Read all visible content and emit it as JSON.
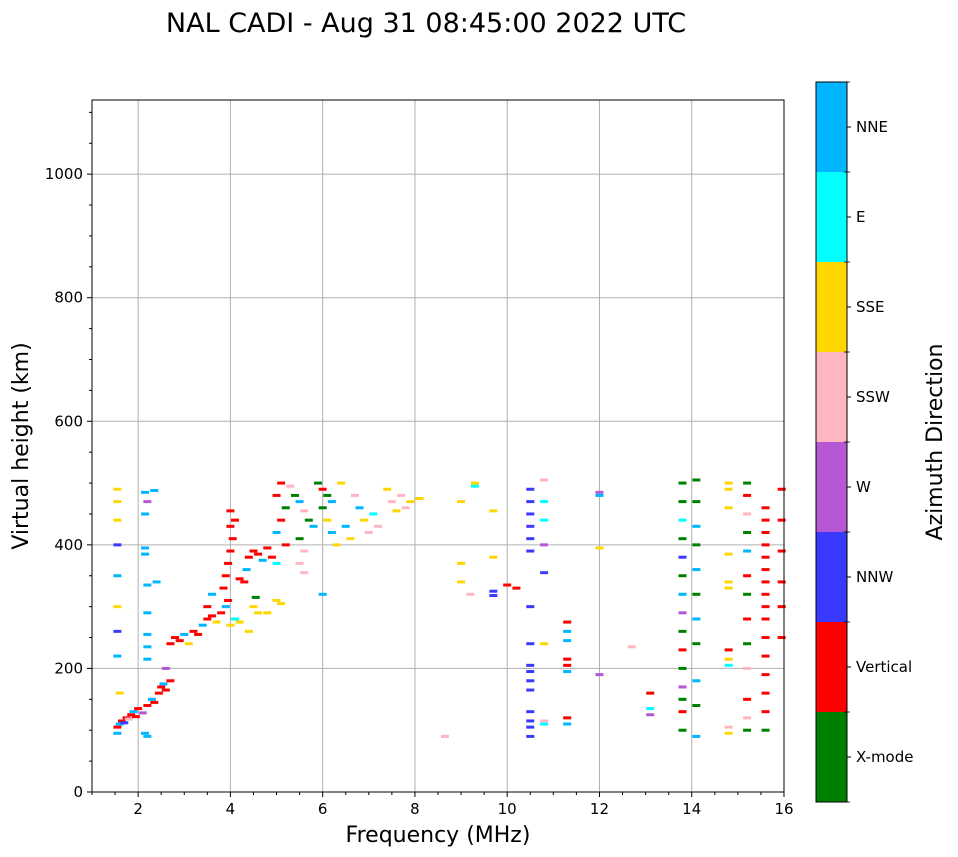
{
  "chart_data": {
    "type": "scatter",
    "title": "NAL CADI - Aug 31 08:45:00 2022 UTC",
    "xlabel": "Frequency (MHz)",
    "ylabel": "Virtual height (km)",
    "xlim": [
      1,
      16
    ],
    "ylim": [
      0,
      1120
    ],
    "x_ticks": [
      2,
      4,
      6,
      8,
      10,
      12,
      14,
      16
    ],
    "y_ticks": [
      0,
      200,
      400,
      600,
      800,
      1000
    ],
    "grid": true,
    "colorbar": {
      "title": "Azimuth Direction",
      "categories": [
        {
          "label": "X-mode",
          "color": "#008000"
        },
        {
          "label": "Vertical",
          "color": "#ff0000"
        },
        {
          "label": "NNW",
          "color": "#3a3aff"
        },
        {
          "label": "W",
          "color": "#b657d6"
        },
        {
          "label": "SSW",
          "color": "#ffb6c1"
        },
        {
          "label": "SSE",
          "color": "#ffd700"
        },
        {
          "label": "E",
          "color": "#00ffff"
        },
        {
          "label": "NNE",
          "color": "#00b7ff"
        }
      ]
    },
    "points": [
      [
        1.55,
        105,
        "Vertical"
      ],
      [
        1.6,
        110,
        "NNE"
      ],
      [
        1.65,
        115,
        "Vertical"
      ],
      [
        1.7,
        112,
        "NNW"
      ],
      [
        1.75,
        120,
        "Vertical"
      ],
      [
        1.8,
        118,
        "SSW"
      ],
      [
        1.85,
        125,
        "Vertical"
      ],
      [
        1.9,
        130,
        "NNE"
      ],
      [
        1.95,
        122,
        "Vertical"
      ],
      [
        2.0,
        135,
        "Vertical"
      ],
      [
        2.1,
        128,
        "W"
      ],
      [
        2.2,
        140,
        "Vertical"
      ],
      [
        2.3,
        150,
        "NNE"
      ],
      [
        2.35,
        145,
        "Vertical"
      ],
      [
        2.45,
        160,
        "Vertical"
      ],
      [
        2.5,
        170,
        "Vertical"
      ],
      [
        2.55,
        175,
        "NNE"
      ],
      [
        2.6,
        165,
        "Vertical"
      ],
      [
        2.7,
        180,
        "Vertical"
      ],
      [
        2.6,
        200,
        "W"
      ],
      [
        1.55,
        490,
        "SSE"
      ],
      [
        1.55,
        470,
        "SSE"
      ],
      [
        1.55,
        440,
        "SSE"
      ],
      [
        1.55,
        400,
        "NNW"
      ],
      [
        1.55,
        350,
        "NNE"
      ],
      [
        1.55,
        300,
        "SSE"
      ],
      [
        1.55,
        260,
        "NNW"
      ],
      [
        1.55,
        220,
        "NNE"
      ],
      [
        1.6,
        160,
        "SSE"
      ],
      [
        1.55,
        95,
        "NNE"
      ],
      [
        2.15,
        485,
        "NNE"
      ],
      [
        2.2,
        470,
        "W"
      ],
      [
        2.15,
        450,
        "NNE"
      ],
      [
        2.15,
        395,
        "NNE"
      ],
      [
        2.15,
        385,
        "NNE"
      ],
      [
        2.2,
        335,
        "NNE"
      ],
      [
        2.2,
        290,
        "NNE"
      ],
      [
        2.2,
        255,
        "NNE"
      ],
      [
        2.2,
        235,
        "NNE"
      ],
      [
        2.2,
        215,
        "NNE"
      ],
      [
        2.35,
        488,
        "NNE"
      ],
      [
        2.4,
        340,
        "NNE"
      ],
      [
        2.15,
        95,
        "NNE"
      ],
      [
        2.2,
        90,
        "NNE"
      ],
      [
        2.7,
        240,
        "Vertical"
      ],
      [
        2.8,
        250,
        "Vertical"
      ],
      [
        2.9,
        245,
        "Vertical"
      ],
      [
        3.0,
        255,
        "NNE"
      ],
      [
        3.1,
        240,
        "SSE"
      ],
      [
        3.2,
        260,
        "Vertical"
      ],
      [
        3.3,
        255,
        "Vertical"
      ],
      [
        3.4,
        270,
        "NNE"
      ],
      [
        3.5,
        280,
        "Vertical"
      ],
      [
        3.6,
        285,
        "Vertical"
      ],
      [
        3.7,
        275,
        "SSE"
      ],
      [
        3.8,
        290,
        "Vertical"
      ],
      [
        3.9,
        300,
        "NNE"
      ],
      [
        3.95,
        310,
        "Vertical"
      ],
      [
        4.0,
        270,
        "SSE"
      ],
      [
        4.1,
        280,
        "E"
      ],
      [
        4.2,
        275,
        "SSE"
      ],
      [
        3.5,
        300,
        "Vertical"
      ],
      [
        3.6,
        320,
        "NNE"
      ],
      [
        3.85,
        330,
        "Vertical"
      ],
      [
        3.9,
        350,
        "Vertical"
      ],
      [
        3.95,
        370,
        "Vertical"
      ],
      [
        4.0,
        390,
        "Vertical"
      ],
      [
        4.05,
        410,
        "Vertical"
      ],
      [
        4.0,
        430,
        "Vertical"
      ],
      [
        4.1,
        440,
        "Vertical"
      ],
      [
        4.0,
        455,
        "Vertical"
      ],
      [
        4.2,
        345,
        "Vertical"
      ],
      [
        4.3,
        340,
        "Vertical"
      ],
      [
        4.35,
        360,
        "NNE"
      ],
      [
        4.4,
        380,
        "Vertical"
      ],
      [
        4.5,
        390,
        "Vertical"
      ],
      [
        4.6,
        385,
        "Vertical"
      ],
      [
        4.7,
        375,
        "NNE"
      ],
      [
        4.8,
        395,
        "Vertical"
      ],
      [
        4.9,
        380,
        "Vertical"
      ],
      [
        5.0,
        370,
        "E"
      ],
      [
        4.55,
        315,
        "X-mode"
      ],
      [
        4.5,
        300,
        "SSE"
      ],
      [
        4.6,
        290,
        "SSE"
      ],
      [
        4.4,
        260,
        "SSE"
      ],
      [
        4.8,
        290,
        "SSE"
      ],
      [
        5.0,
        310,
        "SSE"
      ],
      [
        5.1,
        305,
        "SSE"
      ],
      [
        5.2,
        400,
        "Vertical"
      ],
      [
        5.0,
        420,
        "NNE"
      ],
      [
        5.1,
        440,
        "Vertical"
      ],
      [
        5.2,
        460,
        "X-mode"
      ],
      [
        5.0,
        480,
        "Vertical"
      ],
      [
        5.1,
        500,
        "Vertical"
      ],
      [
        5.3,
        495,
        "SSW"
      ],
      [
        5.4,
        480,
        "X-mode"
      ],
      [
        5.5,
        470,
        "NNE"
      ],
      [
        5.6,
        455,
        "SSW"
      ],
      [
        5.7,
        440,
        "X-mode"
      ],
      [
        5.8,
        430,
        "NNE"
      ],
      [
        5.5,
        410,
        "X-mode"
      ],
      [
        5.6,
        390,
        "SSW"
      ],
      [
        5.5,
        370,
        "SSW"
      ],
      [
        5.6,
        355,
        "SSW"
      ],
      [
        5.9,
        500,
        "X-mode"
      ],
      [
        6.0,
        490,
        "Vertical"
      ],
      [
        6.1,
        480,
        "X-mode"
      ],
      [
        6.2,
        470,
        "NNE"
      ],
      [
        6.0,
        460,
        "X-mode"
      ],
      [
        6.1,
        440,
        "SSE"
      ],
      [
        6.2,
        420,
        "NNE"
      ],
      [
        6.3,
        400,
        "SSE"
      ],
      [
        6.0,
        320,
        "NNE"
      ],
      [
        6.4,
        500,
        "SSE"
      ],
      [
        6.5,
        430,
        "NNE"
      ],
      [
        6.6,
        410,
        "SSE"
      ],
      [
        6.7,
        480,
        "SSW"
      ],
      [
        6.8,
        460,
        "NNE"
      ],
      [
        6.9,
        440,
        "SSE"
      ],
      [
        7.0,
        420,
        "SSW"
      ],
      [
        7.1,
        450,
        "E"
      ],
      [
        7.2,
        430,
        "SSW"
      ],
      [
        7.4,
        490,
        "SSE"
      ],
      [
        7.5,
        470,
        "SSW"
      ],
      [
        7.6,
        455,
        "SSE"
      ],
      [
        7.7,
        480,
        "SSW"
      ],
      [
        7.8,
        460,
        "SSW"
      ],
      [
        7.9,
        470,
        "SSE"
      ],
      [
        8.1,
        475,
        "SSE"
      ],
      [
        8.65,
        90,
        "SSW"
      ],
      [
        9.0,
        470,
        "SSE"
      ],
      [
        9.0,
        370,
        "SSE"
      ],
      [
        9.0,
        340,
        "SSE"
      ],
      [
        9.2,
        320,
        "SSW"
      ],
      [
        9.3,
        500,
        "SSE"
      ],
      [
        9.3,
        495,
        "E"
      ],
      [
        9.7,
        455,
        "SSE"
      ],
      [
        9.7,
        380,
        "SSE"
      ],
      [
        9.7,
        325,
        "NNW"
      ],
      [
        9.7,
        318,
        "NNW"
      ],
      [
        10.0,
        335,
        "Vertical"
      ],
      [
        10.2,
        330,
        "Vertical"
      ],
      [
        10.5,
        490,
        "NNW"
      ],
      [
        10.5,
        470,
        "NNW"
      ],
      [
        10.5,
        450,
        "NNW"
      ],
      [
        10.5,
        430,
        "NNW"
      ],
      [
        10.5,
        410,
        "NNW"
      ],
      [
        10.5,
        390,
        "NNW"
      ],
      [
        10.5,
        300,
        "NNW"
      ],
      [
        10.5,
        240,
        "NNW"
      ],
      [
        10.5,
        205,
        "NNW"
      ],
      [
        10.5,
        195,
        "NNW"
      ],
      [
        10.5,
        180,
        "NNW"
      ],
      [
        10.5,
        165,
        "NNW"
      ],
      [
        10.5,
        130,
        "NNW"
      ],
      [
        10.5,
        115,
        "NNW"
      ],
      [
        10.5,
        105,
        "NNW"
      ],
      [
        10.5,
        90,
        "NNW"
      ],
      [
        10.8,
        505,
        "SSW"
      ],
      [
        10.8,
        470,
        "E"
      ],
      [
        10.8,
        440,
        "E"
      ],
      [
        10.8,
        400,
        "W"
      ],
      [
        10.8,
        355,
        "NNW"
      ],
      [
        10.8,
        240,
        "SSE"
      ],
      [
        10.8,
        115,
        "SSW"
      ],
      [
        10.8,
        110,
        "E"
      ],
      [
        11.3,
        275,
        "Vertical"
      ],
      [
        11.3,
        260,
        "NNE"
      ],
      [
        11.3,
        245,
        "NNE"
      ],
      [
        11.3,
        215,
        "Vertical"
      ],
      [
        11.3,
        205,
        "Vertical"
      ],
      [
        11.3,
        195,
        "NNE"
      ],
      [
        11.3,
        120,
        "Vertical"
      ],
      [
        11.3,
        110,
        "NNE"
      ],
      [
        12.0,
        485,
        "W"
      ],
      [
        12.0,
        480,
        "NNE"
      ],
      [
        12.0,
        395,
        "SSE"
      ],
      [
        12.0,
        190,
        "W"
      ],
      [
        12.7,
        235,
        "SSW"
      ],
      [
        13.1,
        160,
        "Vertical"
      ],
      [
        13.1,
        135,
        "E"
      ],
      [
        13.1,
        125,
        "W"
      ],
      [
        13.8,
        500,
        "X-mode"
      ],
      [
        13.8,
        470,
        "X-mode"
      ],
      [
        13.8,
        440,
        "E"
      ],
      [
        13.8,
        410,
        "X-mode"
      ],
      [
        13.8,
        380,
        "NNW"
      ],
      [
        13.8,
        350,
        "X-mode"
      ],
      [
        13.8,
        320,
        "NNE"
      ],
      [
        13.8,
        290,
        "W"
      ],
      [
        13.8,
        260,
        "X-mode"
      ],
      [
        13.8,
        230,
        "Vertical"
      ],
      [
        13.8,
        200,
        "X-mode"
      ],
      [
        13.8,
        170,
        "W"
      ],
      [
        13.8,
        150,
        "X-mode"
      ],
      [
        13.8,
        130,
        "Vertical"
      ],
      [
        13.8,
        100,
        "X-mode"
      ],
      [
        14.1,
        505,
        "X-mode"
      ],
      [
        14.1,
        470,
        "X-mode"
      ],
      [
        14.1,
        430,
        "NNE"
      ],
      [
        14.1,
        400,
        "X-mode"
      ],
      [
        14.1,
        360,
        "NNE"
      ],
      [
        14.1,
        320,
        "X-mode"
      ],
      [
        14.1,
        280,
        "NNE"
      ],
      [
        14.1,
        240,
        "X-mode"
      ],
      [
        14.1,
        180,
        "NNE"
      ],
      [
        14.1,
        140,
        "X-mode"
      ],
      [
        14.1,
        90,
        "NNE"
      ],
      [
        14.8,
        500,
        "SSE"
      ],
      [
        14.8,
        490,
        "SSE"
      ],
      [
        14.8,
        460,
        "SSE"
      ],
      [
        14.8,
        385,
        "SSE"
      ],
      [
        14.8,
        340,
        "SSE"
      ],
      [
        14.8,
        330,
        "SSE"
      ],
      [
        14.8,
        230,
        "Vertical"
      ],
      [
        14.8,
        215,
        "SSE"
      ],
      [
        14.8,
        205,
        "E"
      ],
      [
        14.8,
        105,
        "SSW"
      ],
      [
        14.8,
        95,
        "SSE"
      ],
      [
        15.2,
        500,
        "X-mode"
      ],
      [
        15.2,
        480,
        "Vertical"
      ],
      [
        15.2,
        450,
        "SSW"
      ],
      [
        15.2,
        420,
        "X-mode"
      ],
      [
        15.2,
        390,
        "NNE"
      ],
      [
        15.2,
        350,
        "Vertical"
      ],
      [
        15.2,
        320,
        "X-mode"
      ],
      [
        15.2,
        280,
        "Vertical"
      ],
      [
        15.2,
        240,
        "X-mode"
      ],
      [
        15.2,
        200,
        "SSW"
      ],
      [
        15.2,
        150,
        "Vertical"
      ],
      [
        15.2,
        120,
        "SSW"
      ],
      [
        15.2,
        100,
        "X-mode"
      ],
      [
        15.6,
        460,
        "Vertical"
      ],
      [
        15.6,
        440,
        "Vertical"
      ],
      [
        15.6,
        420,
        "Vertical"
      ],
      [
        15.6,
        400,
        "Vertical"
      ],
      [
        15.6,
        380,
        "Vertical"
      ],
      [
        15.6,
        360,
        "Vertical"
      ],
      [
        15.6,
        340,
        "Vertical"
      ],
      [
        15.6,
        320,
        "Vertical"
      ],
      [
        15.6,
        300,
        "Vertical"
      ],
      [
        15.6,
        280,
        "Vertical"
      ],
      [
        15.6,
        250,
        "Vertical"
      ],
      [
        15.6,
        220,
        "Vertical"
      ],
      [
        15.6,
        190,
        "Vertical"
      ],
      [
        15.6,
        160,
        "Vertical"
      ],
      [
        15.6,
        130,
        "Vertical"
      ],
      [
        15.6,
        100,
        "X-mode"
      ],
      [
        15.95,
        490,
        "Vertical"
      ],
      [
        15.95,
        440,
        "Vertical"
      ],
      [
        15.95,
        390,
        "Vertical"
      ],
      [
        15.95,
        340,
        "Vertical"
      ],
      [
        15.95,
        300,
        "Vertical"
      ],
      [
        15.95,
        250,
        "Vertical"
      ]
    ]
  }
}
